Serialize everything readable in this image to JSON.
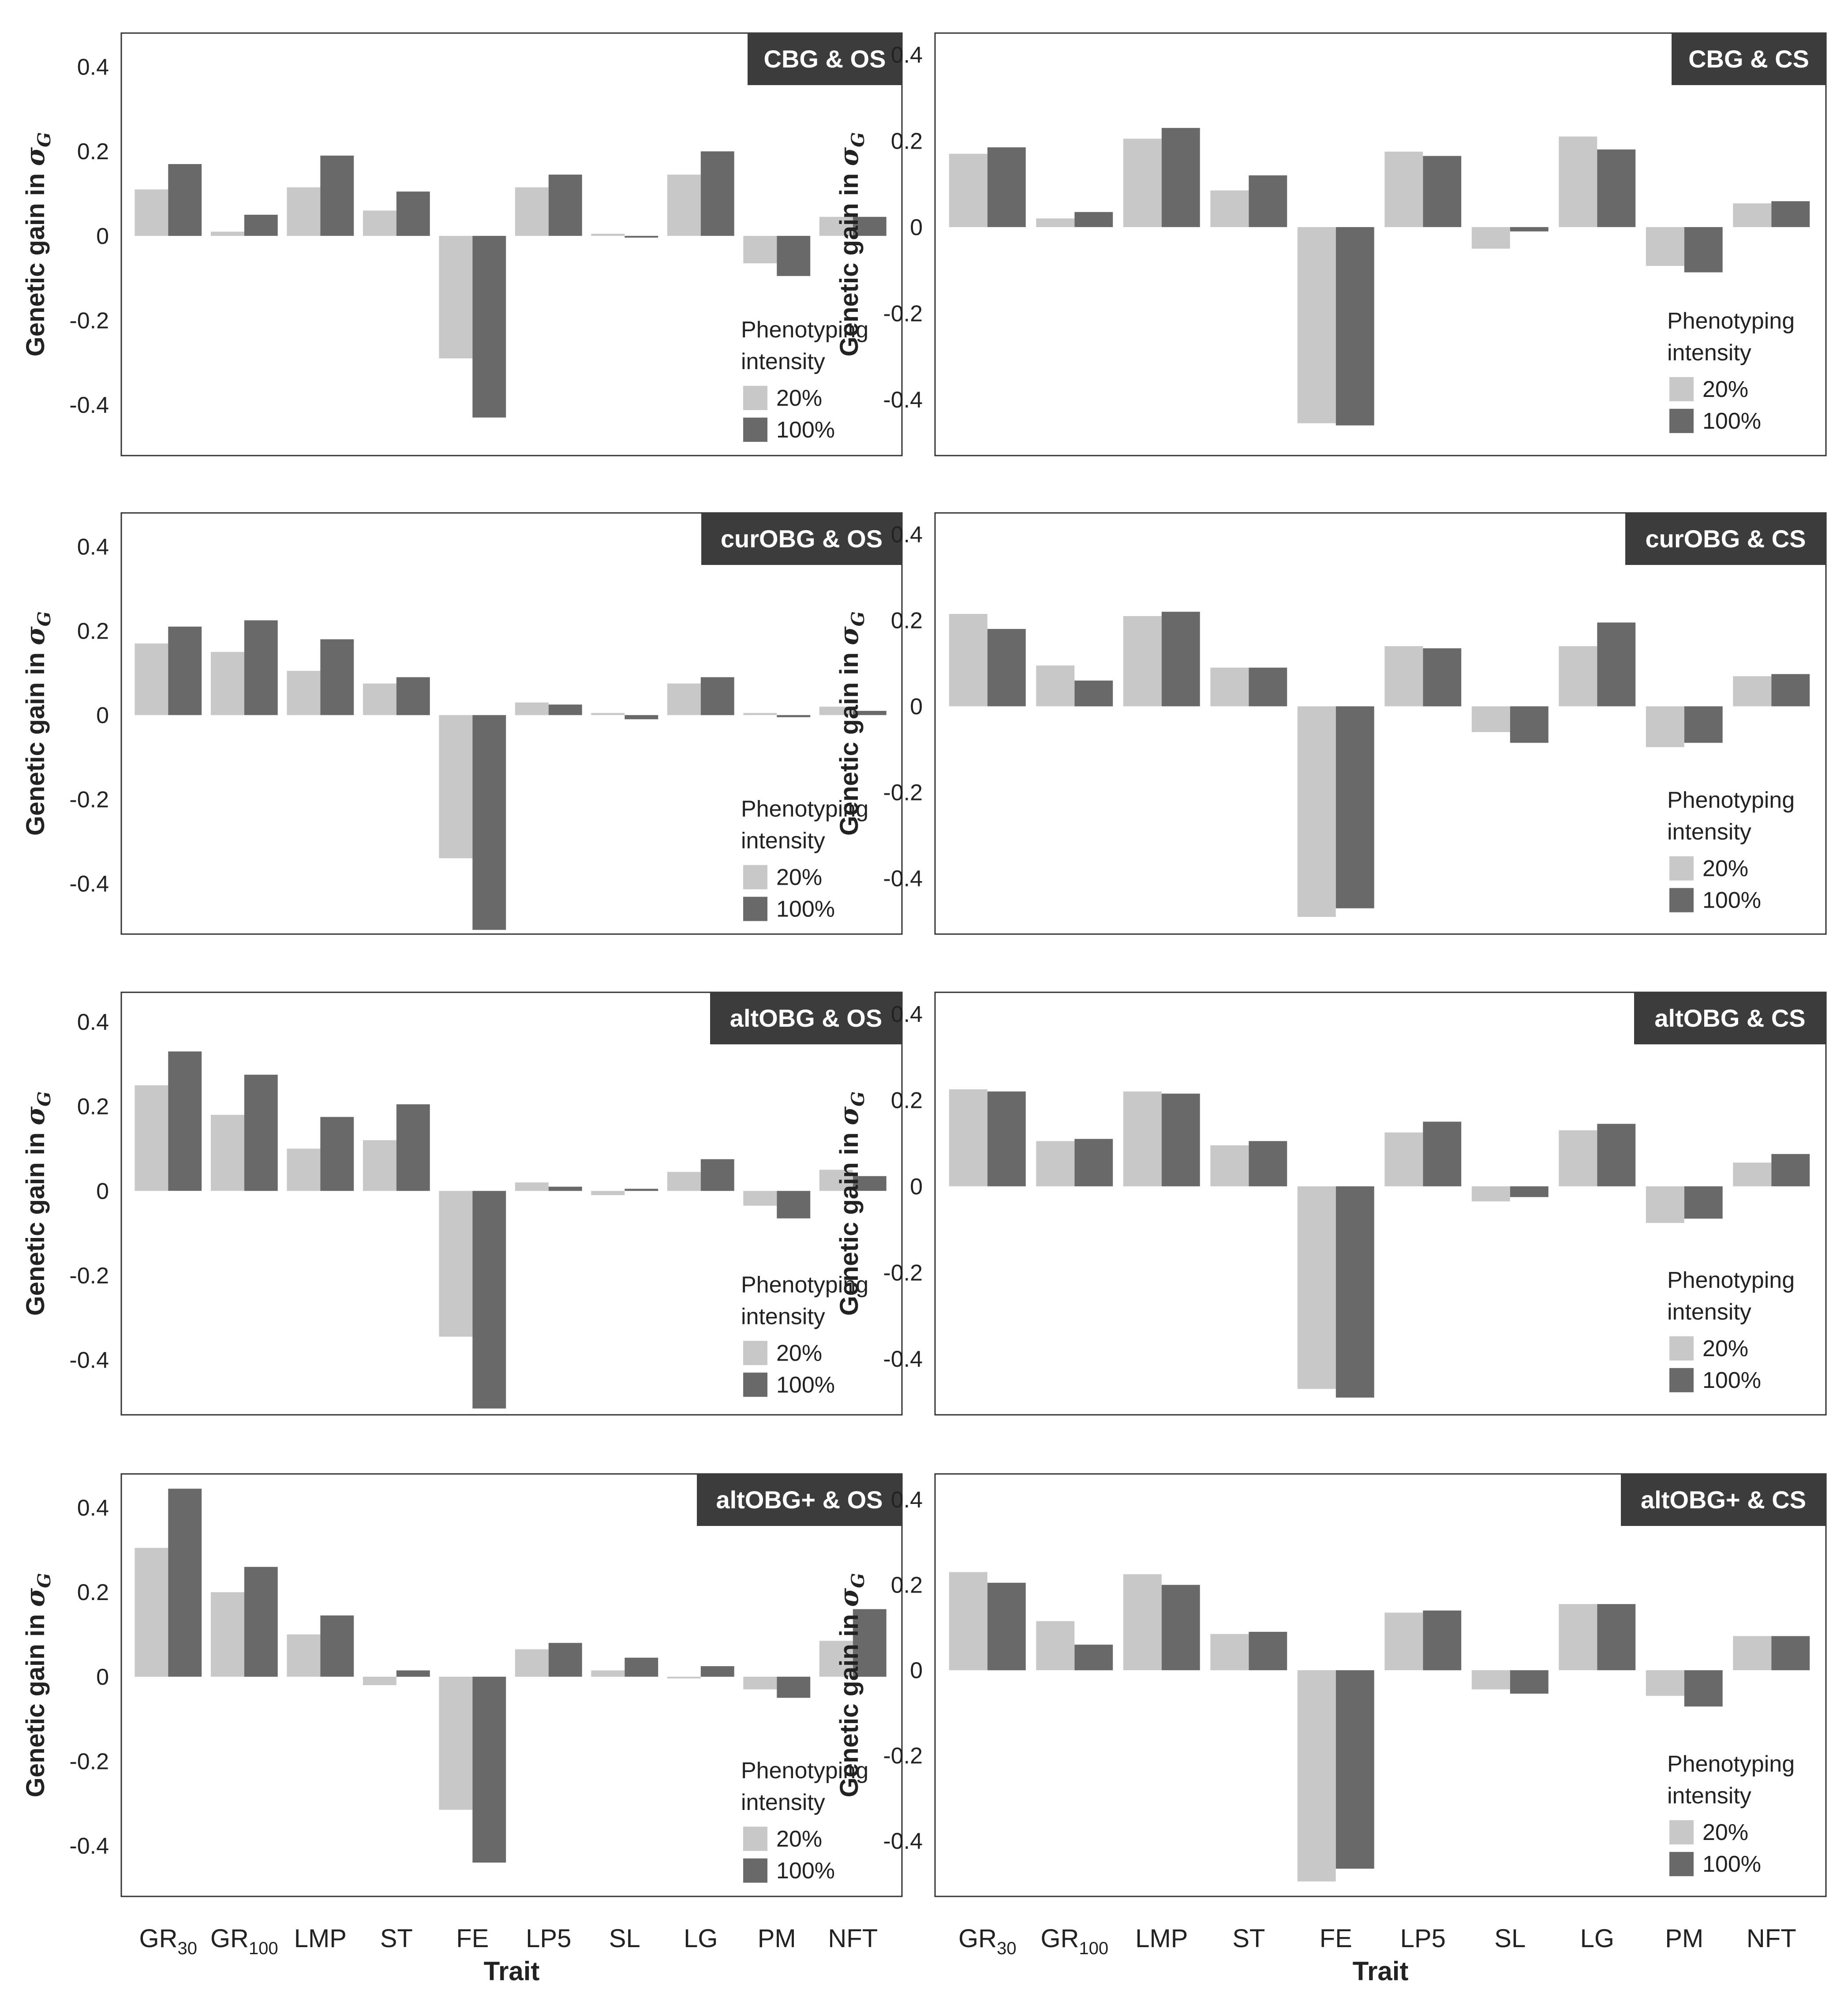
{
  "figure": {
    "x_axis_title": "Trait",
    "y_axis_label_prefix": "Genetic gain in ",
    "y_axis_label_symbol": "σ",
    "y_axis_label_subscript": "G",
    "trait_labels": [
      {
        "base": "GR",
        "sub": "30"
      },
      {
        "base": "GR",
        "sub": "100"
      },
      {
        "base": "LMP",
        "sub": ""
      },
      {
        "base": "ST",
        "sub": ""
      },
      {
        "base": "FE",
        "sub": ""
      },
      {
        "base": "LP5",
        "sub": ""
      },
      {
        "base": "SL",
        "sub": ""
      },
      {
        "base": "LG",
        "sub": ""
      },
      {
        "base": "PM",
        "sub": ""
      },
      {
        "base": "NFT",
        "sub": ""
      }
    ],
    "colors": {
      "series_20": "#c8c8c8",
      "series_100": "#696969",
      "title_bg": "#3c3c3c"
    }
  },
  "chart_data": [
    {
      "type": "bar",
      "title": "CBG & OS",
      "categories": [
        "GR30",
        "GR100",
        "LMP",
        "ST",
        "FE",
        "LP5",
        "SL",
        "LG",
        "PM",
        "NFT"
      ],
      "series": [
        {
          "name": "20%",
          "values": [
            0.11,
            0.01,
            0.115,
            0.06,
            -0.29,
            0.115,
            0.005,
            0.145,
            -0.065,
            0.045
          ]
        },
        {
          "name": "100%",
          "values": [
            0.17,
            0.05,
            0.19,
            0.105,
            -0.43,
            0.145,
            0.0,
            0.2,
            -0.095,
            0.045
          ]
        }
      ],
      "ylabel": "Genetic gain in σG",
      "yticks": [
        0.4,
        0.2,
        0,
        -0.2,
        -0.4
      ],
      "ylim": [
        -0.52,
        0.48
      ],
      "legend": {
        "title_line1": "Phenotyping",
        "title_line2": "intensity",
        "items": [
          "20%",
          "100%"
        ]
      }
    },
    {
      "type": "bar",
      "title": "CBG & CS",
      "categories": [
        "GR30",
        "GR100",
        "LMP",
        "ST",
        "FE",
        "LP5",
        "SL",
        "LG",
        "PM",
        "NFT"
      ],
      "series": [
        {
          "name": "20%",
          "values": [
            0.17,
            0.02,
            0.205,
            0.085,
            -0.455,
            0.175,
            -0.05,
            0.21,
            -0.09,
            0.055
          ]
        },
        {
          "name": "100%",
          "values": [
            0.185,
            0.035,
            0.23,
            0.12,
            -0.46,
            0.165,
            -0.01,
            0.18,
            -0.105,
            0.06
          ]
        }
      ],
      "ylabel": "Genetic gain in σG",
      "yticks": [
        0.4,
        0.2,
        0,
        -0.2,
        -0.4
      ],
      "ylim": [
        -0.53,
        0.45
      ],
      "legend": {
        "title_line1": "Phenotyping",
        "title_line2": "intensity",
        "items": [
          "20%",
          "100%"
        ]
      }
    },
    {
      "type": "bar",
      "title": "curOBG & OS",
      "categories": [
        "GR30",
        "GR100",
        "LMP",
        "ST",
        "FE",
        "LP5",
        "SL",
        "LG",
        "PM",
        "NFT"
      ],
      "series": [
        {
          "name": "20%",
          "values": [
            0.17,
            0.15,
            0.105,
            0.075,
            -0.34,
            0.03,
            0.005,
            0.075,
            0.005,
            0.02
          ]
        },
        {
          "name": "100%",
          "values": [
            0.21,
            0.225,
            0.18,
            0.09,
            -0.51,
            0.025,
            -0.01,
            0.09,
            -0.005,
            0.01
          ]
        }
      ],
      "ylabel": "Genetic gain in σG",
      "yticks": [
        0.4,
        0.2,
        0,
        -0.2,
        -0.4
      ],
      "ylim": [
        -0.52,
        0.48
      ],
      "legend": {
        "title_line1": "Phenotyping",
        "title_line2": "intensity",
        "items": [
          "20%",
          "100%"
        ]
      }
    },
    {
      "type": "bar",
      "title": "curOBG & CS",
      "categories": [
        "GR30",
        "GR100",
        "LMP",
        "ST",
        "FE",
        "LP5",
        "SL",
        "LG",
        "PM",
        "NFT"
      ],
      "series": [
        {
          "name": "20%",
          "values": [
            0.215,
            0.095,
            0.21,
            0.09,
            -0.49,
            0.14,
            -0.06,
            0.14,
            -0.095,
            0.07
          ]
        },
        {
          "name": "100%",
          "values": [
            0.18,
            0.06,
            0.22,
            0.09,
            -0.47,
            0.135,
            -0.085,
            0.195,
            -0.085,
            0.075
          ]
        }
      ],
      "ylabel": "Genetic gain in σG",
      "yticks": [
        0.4,
        0.2,
        0,
        -0.2,
        -0.4
      ],
      "ylim": [
        -0.53,
        0.45
      ],
      "legend": {
        "title_line1": "Phenotyping",
        "title_line2": "intensity",
        "items": [
          "20%",
          "100%"
        ]
      }
    },
    {
      "type": "bar",
      "title": "altOBG & OS",
      "categories": [
        "GR30",
        "GR100",
        "LMP",
        "ST",
        "FE",
        "LP5",
        "SL",
        "LG",
        "PM",
        "NFT"
      ],
      "series": [
        {
          "name": "20%",
          "values": [
            0.25,
            0.18,
            0.1,
            0.12,
            -0.345,
            0.02,
            -0.01,
            0.045,
            -0.035,
            0.05
          ]
        },
        {
          "name": "100%",
          "values": [
            0.33,
            0.275,
            0.175,
            0.205,
            -0.515,
            0.01,
            0.005,
            0.075,
            -0.065,
            0.035
          ]
        }
      ],
      "ylabel": "Genetic gain in σG",
      "yticks": [
        0.4,
        0.2,
        0,
        -0.2,
        -0.4
      ],
      "ylim": [
        -0.53,
        0.47
      ],
      "legend": {
        "title_line1": "Phenotyping",
        "title_line2": "intensity",
        "items": [
          "20%",
          "100%"
        ]
      }
    },
    {
      "type": "bar",
      "title": "altOBG & CS",
      "categories": [
        "GR30",
        "GR100",
        "LMP",
        "ST",
        "FE",
        "LP5",
        "SL",
        "LG",
        "PM",
        "NFT"
      ],
      "series": [
        {
          "name": "20%",
          "values": [
            0.225,
            0.105,
            0.22,
            0.095,
            -0.47,
            0.125,
            -0.035,
            0.13,
            -0.085,
            0.055
          ]
        },
        {
          "name": "100%",
          "values": [
            0.22,
            0.11,
            0.215,
            0.105,
            -0.49,
            0.15,
            -0.025,
            0.145,
            -0.075,
            0.075
          ]
        }
      ],
      "ylabel": "Genetic gain in σG",
      "yticks": [
        0.4,
        0.2,
        0,
        -0.2,
        -0.4
      ],
      "ylim": [
        -0.53,
        0.45
      ],
      "legend": {
        "title_line1": "Phenotyping",
        "title_line2": "intensity",
        "items": [
          "20%",
          "100%"
        ]
      }
    },
    {
      "type": "bar",
      "title": "altOBG+ & OS",
      "categories": [
        "GR30",
        "GR100",
        "LMP",
        "ST",
        "FE",
        "LP5",
        "SL",
        "LG",
        "PM",
        "NFT"
      ],
      "series": [
        {
          "name": "20%",
          "values": [
            0.305,
            0.2,
            0.1,
            -0.02,
            -0.315,
            0.065,
            0.015,
            0.0,
            -0.03,
            0.085
          ]
        },
        {
          "name": "100%",
          "values": [
            0.445,
            0.26,
            0.145,
            0.015,
            -0.44,
            0.08,
            0.045,
            0.025,
            -0.05,
            0.16
          ]
        }
      ],
      "ylabel": "Genetic gain in σG",
      "yticks": [
        0.4,
        0.2,
        0,
        -0.2,
        -0.4
      ],
      "ylim": [
        -0.52,
        0.48
      ],
      "legend": {
        "title_line1": "Phenotyping",
        "title_line2": "intensity",
        "items": [
          "20%",
          "100%"
        ]
      }
    },
    {
      "type": "bar",
      "title": "altOBG+ & CS",
      "categories": [
        "GR30",
        "GR100",
        "LMP",
        "ST",
        "FE",
        "LP5",
        "SL",
        "LG",
        "PM",
        "NFT"
      ],
      "series": [
        {
          "name": "20%",
          "values": [
            0.23,
            0.115,
            0.225,
            0.085,
            -0.495,
            0.135,
            -0.045,
            0.155,
            -0.06,
            0.08
          ]
        },
        {
          "name": "100%",
          "values": [
            0.205,
            0.06,
            0.2,
            0.09,
            -0.465,
            0.14,
            -0.055,
            0.155,
            -0.085,
            0.08
          ]
        }
      ],
      "ylabel": "Genetic gain in σG",
      "yticks": [
        0.4,
        0.2,
        0,
        -0.2,
        -0.4
      ],
      "ylim": [
        -0.53,
        0.46
      ],
      "legend": {
        "title_line1": "Phenotyping",
        "title_line2": "intensity",
        "items": [
          "20%",
          "100%"
        ]
      }
    }
  ]
}
